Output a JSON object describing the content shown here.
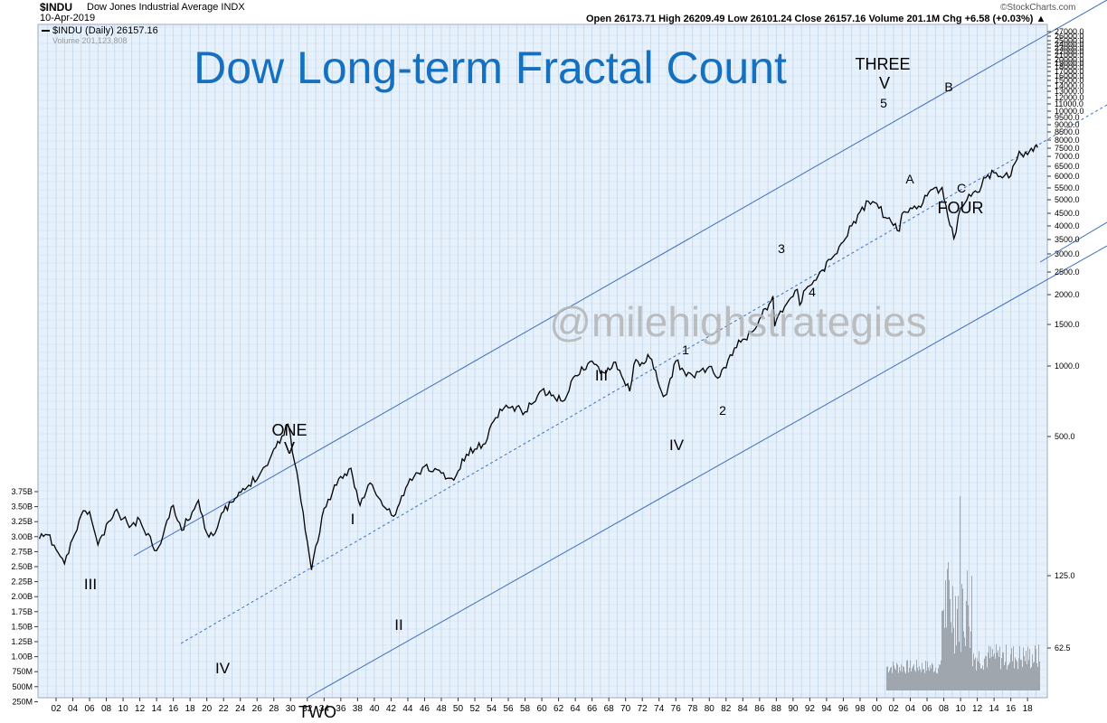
{
  "header": {
    "symbol": "$INDU",
    "name": "Dow Jones Industrial Average INDX",
    "date": "10-Apr-2019",
    "ohlc": "Open 26173.71  High 26209.49  Low 26101.24  Close 26157.16  Volume 201.1M  Chg +6.58 (+0.03%) ▲",
    "source": "©StockCharts.com"
  },
  "legend": {
    "price": "$INDU (Daily) 26157.16",
    "volume": "Volume 201,123,808"
  },
  "watermark": "@milehighstrategies",
  "chart_data": {
    "type": "line",
    "title": "Dow Long-term Fractal Count",
    "scale": "log",
    "x_tick_labels": [
      "02",
      "04",
      "06",
      "08",
      "10",
      "12",
      "14",
      "16",
      "18",
      "20",
      "22",
      "24",
      "26",
      "28",
      "30",
      "32",
      "34",
      "36",
      "38",
      "40",
      "42",
      "44",
      "46",
      "48",
      "50",
      "52",
      "54",
      "56",
      "58",
      "60",
      "62",
      "64",
      "66",
      "68",
      "70",
      "72",
      "74",
      "76",
      "78",
      "80",
      "82",
      "84",
      "86",
      "88",
      "90",
      "92",
      "94",
      "96",
      "98",
      "00",
      "02",
      "04",
      "06",
      "08",
      "10",
      "12",
      "14",
      "16",
      "18"
    ],
    "y_tick_labels": [
      "27000.0",
      "26000.0",
      "25000.0",
      "24000.0",
      "23000.0",
      "22000.0",
      "21000.0",
      "20000.0",
      "19000.0",
      "18000.0",
      "17000.0",
      "16000.0",
      "15000.0",
      "14000.0",
      "13000.0",
      "12000.0",
      "11000.0",
      "10000.0",
      "9500.0",
      "9000.0",
      "8500.0",
      "8000.0",
      "7500.0",
      "7000.0",
      "6500.0",
      "6000.0",
      "5500.0",
      "5000.0",
      "4500.0",
      "4000.0",
      "3500.0",
      "3000.0",
      "2500.0",
      "2000.0",
      "1500.0",
      "1000.0",
      "500.0",
      "125.0",
      "62.5"
    ],
    "volume_tick_labels": [
      "3.75B",
      "3.50B",
      "3.25B",
      "3.00B",
      "2.75B",
      "2.50B",
      "2.25B",
      "2.00B",
      "1.75B",
      "1.50B",
      "1.25B",
      "1.00B",
      "750M",
      "500M",
      "250M"
    ],
    "series": [
      {
        "name": "$INDU (Daily)",
        "x": [
          1900,
          1901,
          1903,
          1905,
          1906,
          1907,
          1909,
          1911,
          1912,
          1914,
          1916,
          1917,
          1919,
          1920,
          1921,
          1922,
          1925,
          1927,
          1929.7,
          1931,
          1932.5,
          1934,
          1935.5,
          1937.2,
          1938.3,
          1939.5,
          1941,
          1942.3,
          1944,
          1946,
          1948,
          1949.5,
          1951,
          1953,
          1955,
          1956.5,
          1958,
          1960,
          1962.5,
          1964,
          1966,
          1967,
          1968.8,
          1970.5,
          1971,
          1972.9,
          1974.5,
          1974.9,
          1976,
          1977,
          1978,
          1980,
          1981,
          1982,
          1983,
          1985,
          1986,
          1987.6,
          1987.8,
          1988.5,
          1990.5,
          1990.8,
          1991.5,
          1993,
          1995,
          1997,
          1999,
          2000,
          2001,
          2002.7,
          2003,
          2004,
          2005,
          2006,
          2007.8,
          2008.5,
          2009.2,
          2010,
          2011,
          2012,
          2013,
          2014,
          2016,
          2017,
          2018,
          2018.9,
          2019.2
        ],
        "values": [
          66,
          70,
          45,
          95,
          100,
          60,
          100,
          81,
          88,
          55,
          110,
          75,
          119,
          72,
          72,
          100,
          150,
          200,
          381,
          150,
          41,
          105,
          150,
          194,
          110,
          155,
          110,
          93,
          152,
          200,
          180,
          162,
          240,
          280,
          480,
          500,
          460,
          640,
          540,
          800,
          1000,
          830,
          985,
          630,
          950,
          1050,
          580,
          600,
          1000,
          850,
          800,
          920,
          770,
          900,
          1220,
          1550,
          1900,
          2700,
          1700,
          2150,
          2990,
          2360,
          3000,
          3700,
          5100,
          7900,
          11500,
          11100,
          9000,
          7300,
          9500,
          10400,
          10700,
          12500,
          14200,
          9000,
          6500,
          10400,
          12800,
          13200,
          16500,
          17800,
          17000,
          24700,
          23500,
          26800,
          26157
        ]
      }
    ],
    "wave_labels": [
      "III",
      "IV",
      "ONE",
      "V",
      "TWO",
      "I",
      "II",
      "III",
      "IV",
      "1",
      "2",
      "3",
      "4",
      "THREE",
      "V",
      "5",
      "A",
      "B",
      "C",
      "FOUR"
    ]
  }
}
